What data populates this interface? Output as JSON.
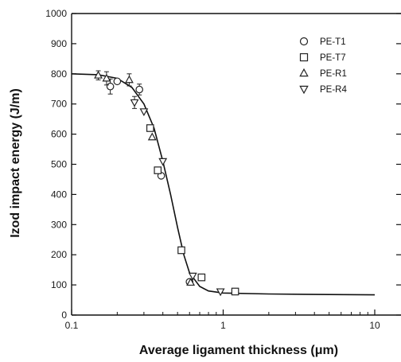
{
  "chart_data": {
    "type": "scatter",
    "title": "",
    "xlabel": "Average ligament thickness (μm)",
    "ylabel": "Izod impact energy (J/m)",
    "x_scale": "log",
    "xlim": [
      0.1,
      10
    ],
    "ylim": [
      0,
      1000
    ],
    "x_ticks": [
      {
        "value": 0.1,
        "label": "0.1"
      },
      {
        "value": 1,
        "label": "1"
      },
      {
        "value": 10,
        "label": "10"
      }
    ],
    "y_ticks": [
      {
        "value": 0,
        "label": "0"
      },
      {
        "value": 100,
        "label": "100"
      },
      {
        "value": 200,
        "label": "200"
      },
      {
        "value": 300,
        "label": "300"
      },
      {
        "value": 400,
        "label": "400"
      },
      {
        "value": 500,
        "label": "500"
      },
      {
        "value": 600,
        "label": "600"
      },
      {
        "value": 700,
        "label": "700"
      },
      {
        "value": 800,
        "label": "800"
      },
      {
        "value": 900,
        "label": "900"
      },
      {
        "value": 1000,
        "label": "1000"
      }
    ],
    "grid": false,
    "legend_position": "top-right",
    "series": [
      {
        "name": "PE-T1",
        "marker": "circle",
        "points": [
          {
            "x": 0.18,
            "y": 758,
            "err": 25
          },
          {
            "x": 0.2,
            "y": 775
          },
          {
            "x": 0.28,
            "y": 748,
            "err": 18
          },
          {
            "x": 0.39,
            "y": 462
          },
          {
            "x": 0.6,
            "y": 110
          }
        ]
      },
      {
        "name": "PE-T7",
        "marker": "square",
        "points": [
          {
            "x": 0.33,
            "y": 620
          },
          {
            "x": 0.37,
            "y": 480
          },
          {
            "x": 0.53,
            "y": 215
          },
          {
            "x": 0.72,
            "y": 125
          },
          {
            "x": 1.2,
            "y": 78
          }
        ]
      },
      {
        "name": "PE-R1",
        "marker": "triangle-up",
        "points": [
          {
            "x": 0.15,
            "y": 795,
            "err": 15
          },
          {
            "x": 0.17,
            "y": 785,
            "err": 22
          },
          {
            "x": 0.24,
            "y": 780,
            "err": 20
          },
          {
            "x": 0.34,
            "y": 590
          },
          {
            "x": 0.61,
            "y": 108
          }
        ]
      },
      {
        "name": "PE-R4",
        "marker": "triangle-down",
        "points": [
          {
            "x": 0.26,
            "y": 705,
            "err": 20
          },
          {
            "x": 0.3,
            "y": 675
          },
          {
            "x": 0.4,
            "y": 510
          },
          {
            "x": 0.63,
            "y": 130
          },
          {
            "x": 0.96,
            "y": 78
          }
        ]
      }
    ],
    "fit_curve": {
      "description": "sigmoidal trend line",
      "points": [
        [
          0.1,
          800
        ],
        [
          0.15,
          797
        ],
        [
          0.2,
          785
        ],
        [
          0.25,
          755
        ],
        [
          0.3,
          700
        ],
        [
          0.35,
          620
        ],
        [
          0.4,
          510
        ],
        [
          0.45,
          400
        ],
        [
          0.5,
          290
        ],
        [
          0.55,
          200
        ],
        [
          0.6,
          140
        ],
        [
          0.7,
          95
        ],
        [
          0.8,
          80
        ],
        [
          1.0,
          73
        ],
        [
          2.0,
          70
        ],
        [
          5.0,
          68
        ],
        [
          10.0,
          67
        ]
      ]
    }
  },
  "colors": {
    "axis": "#111111",
    "marker_stroke": "#222222",
    "curve": "#111111",
    "background": "#ffffff"
  }
}
